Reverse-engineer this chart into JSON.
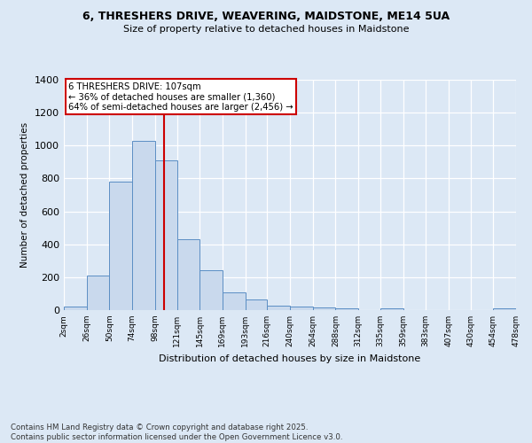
{
  "title1": "6, THRESHERS DRIVE, WEAVERING, MAIDSTONE, ME14 5UA",
  "title2": "Size of property relative to detached houses in Maidstone",
  "xlabel": "Distribution of detached houses by size in Maidstone",
  "ylabel": "Number of detached properties",
  "bin_edges": [
    2,
    26,
    50,
    74,
    98,
    121,
    145,
    169,
    193,
    216,
    240,
    264,
    288,
    312,
    335,
    359,
    383,
    407,
    430,
    454,
    478
  ],
  "bar_heights": [
    20,
    210,
    780,
    1030,
    910,
    430,
    240,
    110,
    65,
    25,
    20,
    15,
    10,
    0,
    10,
    0,
    0,
    0,
    0,
    10
  ],
  "bar_face_color": "#c9d9ed",
  "bar_edge_color": "#5b8ec4",
  "bg_color": "#dce8f5",
  "grid_color": "#ffffff",
  "redline_x": 107,
  "annotation_title": "6 THRESHERS DRIVE: 107sqm",
  "annotation_line1": "← 36% of detached houses are smaller (1,360)",
  "annotation_line2": "64% of semi-detached houses are larger (2,456) →",
  "annotation_box_color": "#ffffff",
  "annotation_box_edge": "#cc0000",
  "redline_color": "#cc0000",
  "ylim": [
    0,
    1400
  ],
  "yticks": [
    0,
    200,
    400,
    600,
    800,
    1000,
    1200,
    1400
  ],
  "footer1": "Contains HM Land Registry data © Crown copyright and database right 2025.",
  "footer2": "Contains public sector information licensed under the Open Government Licence v3.0."
}
